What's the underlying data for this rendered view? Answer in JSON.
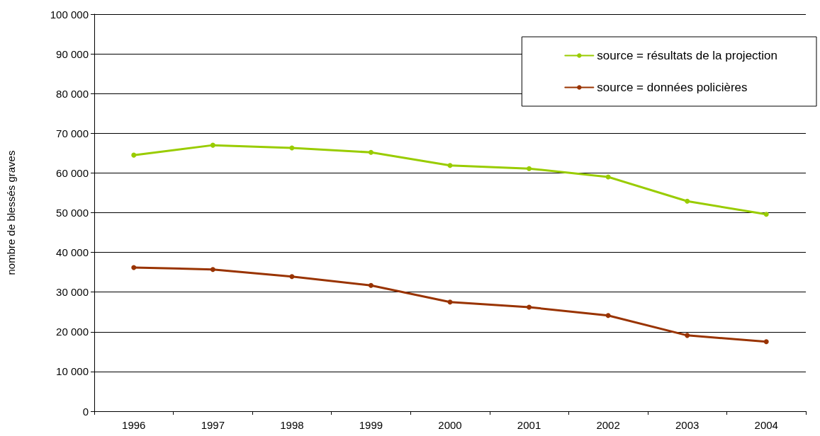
{
  "chart_data": {
    "type": "line",
    "ylabel": "nombre de blessés graves",
    "categories": [
      "1996",
      "1997",
      "1998",
      "1999",
      "2000",
      "2001",
      "2002",
      "2003",
      "2004"
    ],
    "series": [
      {
        "name": "source = résultats de la projection",
        "color": "#99cc00",
        "values": [
          64500,
          67000,
          66300,
          65200,
          61900,
          61100,
          59000,
          52900,
          49600
        ]
      },
      {
        "name": "source = données policières",
        "color": "#993300",
        "values": [
          36200,
          35700,
          33900,
          31700,
          27500,
          26200,
          24100,
          19100,
          17500
        ]
      }
    ],
    "ylim": [
      0,
      100000
    ],
    "yticks": [
      0,
      {
        "value": 10000,
        "label": "10 000"
      },
      {
        "value": 20000,
        "label": "20 000"
      },
      {
        "value": 30000,
        "label": "30 000"
      },
      {
        "value": 40000,
        "label": "40 000"
      },
      {
        "value": 50000,
        "label": "50 000"
      },
      {
        "value": 60000,
        "label": "60 000"
      },
      {
        "value": 70000,
        "label": "70 000"
      },
      {
        "value": 80000,
        "label": "80 000"
      },
      {
        "value": 90000,
        "label": "90 000"
      },
      {
        "value": 100000,
        "label": "100 000"
      }
    ],
    "grid": "y",
    "legend": "top right",
    "marker": "circle",
    "line_style": "solid"
  }
}
